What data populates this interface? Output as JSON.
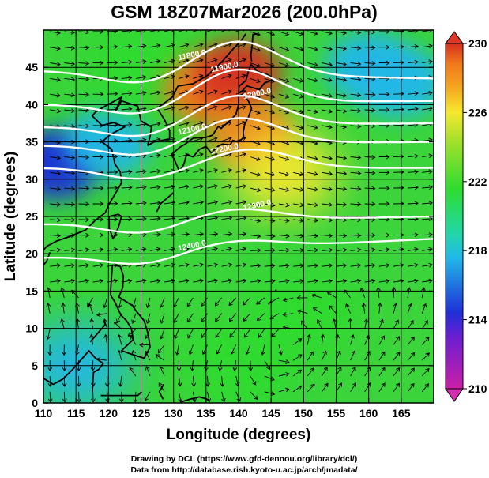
{
  "title": "GSM 18Z07Mar2026 (200.0hPa)",
  "x_axis": {
    "label": "Longitude (degrees)",
    "ticks": [
      "110",
      "115",
      "120",
      "125",
      "130",
      "135",
      "140",
      "145",
      "150",
      "155",
      "160",
      "165"
    ]
  },
  "y_axis": {
    "label": "Latitude  (degrees)",
    "ticks": [
      "0",
      "5",
      "10",
      "15",
      "20",
      "25",
      "30",
      "35",
      "40",
      "45"
    ]
  },
  "colorbar": {
    "ticks": [
      "210",
      "214",
      "218",
      "222",
      "226",
      "230"
    ]
  },
  "contour_labels": [
    "11800.0",
    "11900.0",
    "12000.0",
    "12100.0",
    "12200.0",
    "12300.0",
    "12400.0"
  ],
  "credits": {
    "line1": "Drawing by DCL (https://www.gfd-dennou.org/library/dcl/)",
    "line2": "Data from http://database.rish.kyoto-u.ac.jp/arch/jmadata/"
  },
  "chart_data": {
    "type": "heatmap",
    "title": "GSM 18Z07Mar2026 (200.0hPa)",
    "xlabel": "Longitude (degrees)",
    "ylabel": "Latitude  (degrees)",
    "xlim": [
      110,
      170
    ],
    "ylim": [
      0,
      50
    ],
    "colorbar_range": [
      210,
      230
    ],
    "colorbar_ticks": [
      210,
      214,
      218,
      222,
      226,
      230
    ],
    "colormap": [
      "#cc1fa8",
      "#1f2fd6",
      "#22b8e8",
      "#2fdc2f",
      "#f6e82e",
      "#f07a1c",
      "#d63020"
    ],
    "temperature_field": [
      {
        "lon": 112,
        "lat": 32,
        "value": 215
      },
      {
        "lon": 120,
        "lat": 35,
        "value": 217
      },
      {
        "lon": 125,
        "lat": 45,
        "value": 220
      },
      {
        "lon": 135,
        "lat": 42,
        "value": 228
      },
      {
        "lon": 140,
        "lat": 44,
        "value": 229
      },
      {
        "lon": 142,
        "lat": 36,
        "value": 227
      },
      {
        "lon": 147,
        "lat": 31,
        "value": 225
      },
      {
        "lon": 160,
        "lat": 45,
        "value": 216
      },
      {
        "lon": 165,
        "lat": 43,
        "value": 217
      },
      {
        "lon": 115,
        "lat": 5,
        "value": 219
      },
      {
        "lon": 140,
        "lat": 5,
        "value": 222
      },
      {
        "lon": 150,
        "lat": 12,
        "value": 222
      }
    ],
    "height_contours": [
      {
        "level": 11800,
        "lat_start": 44.5,
        "lat_end": 43.5,
        "ridge_lon": 140,
        "ridge_shift": 4.5
      },
      {
        "level": 11900,
        "lat_start": 40.0,
        "lat_end": 40.5,
        "ridge_lon": 140,
        "ridge_shift": 4.5
      },
      {
        "level": 12000,
        "lat_start": 37.0,
        "lat_end": 37.5,
        "ridge_lon": 140,
        "ridge_shift": 4.0
      },
      {
        "level": 12100,
        "lat_start": 34.5,
        "lat_end": 35.0,
        "ridge_lon": 140,
        "ridge_shift": 3.5
      },
      {
        "level": 12200,
        "lat_start": 31.5,
        "lat_end": 31.5,
        "ridge_lon": 142,
        "ridge_shift": 2.5
      },
      {
        "level": 12300,
        "lat_start": 24.0,
        "lat_end": 25.0,
        "ridge_lon": 140,
        "ridge_shift": 1.5
      },
      {
        "level": 12400,
        "lat_start": 19.5,
        "lat_end": 22.0,
        "ridge_lon": 140,
        "ridge_shift": 1.0
      }
    ]
  }
}
